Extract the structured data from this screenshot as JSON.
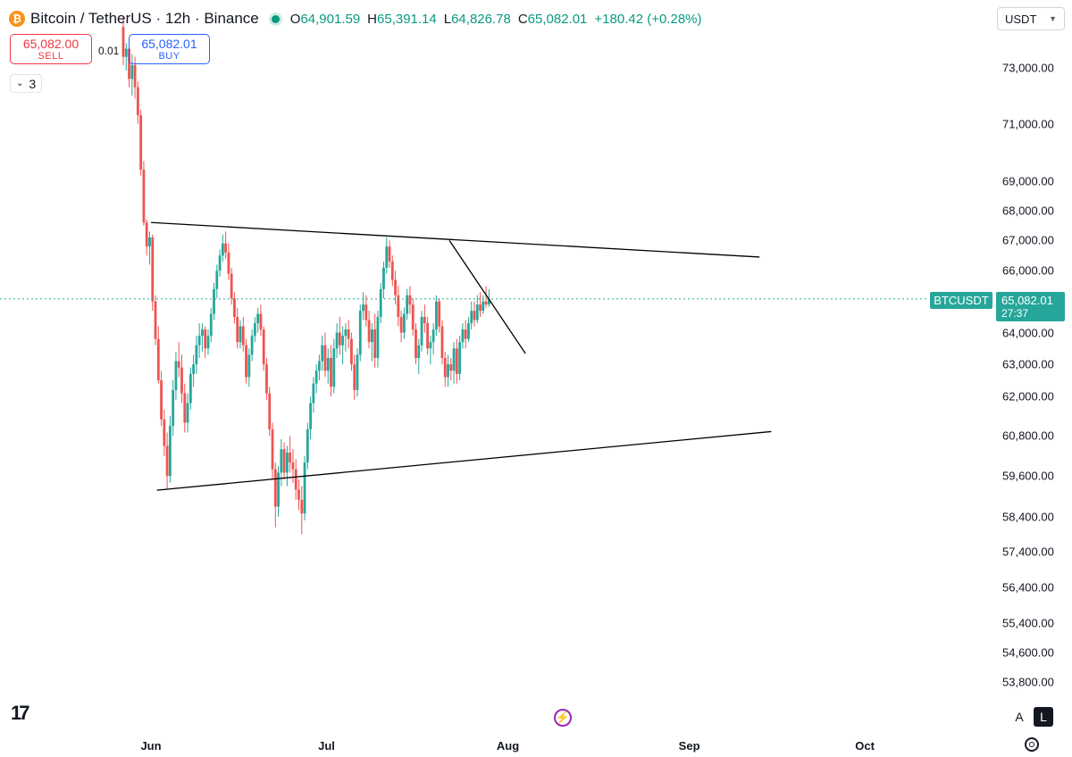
{
  "header": {
    "coin_glyph": "₿",
    "title": "Bitcoin / TetherUS · 12h · Binance",
    "ohlc": [
      {
        "key": "O",
        "value": "64,901.59"
      },
      {
        "key": "H",
        "value": "65,391.14"
      },
      {
        "key": "L",
        "value": "64,826.78"
      },
      {
        "key": "C",
        "value": "65,082.01"
      }
    ],
    "change": "+180.42 (+0.28%)"
  },
  "currency_select": {
    "value": "USDT",
    "icon": "chevron-down-icon"
  },
  "trade": {
    "sell_price": "65,082.00",
    "sell_label": "SELL",
    "spread": "0.01",
    "buy_price": "65,082.01",
    "buy_label": "BUY"
  },
  "indicators": {
    "count": "3",
    "icon": "chevron-down-icon"
  },
  "price_tag": {
    "symbol": "BTCUSDT",
    "price": "65,082.01",
    "countdown": "27:37"
  },
  "bottom": {
    "logo": "17",
    "auto_label": "A",
    "log_label": "L"
  },
  "colors": {
    "up": "#26a69a",
    "down": "#ef5350",
    "accent": "#26a69a",
    "trendline": "#000000"
  },
  "chart_data": {
    "type": "candlestick",
    "symbol": "BTCUSDT",
    "interval": "12h",
    "y_axis_labels": [
      "73,000.00",
      "71,000.00",
      "69,000.00",
      "68,000.00",
      "67,000.00",
      "66,000.00",
      "64,000.00",
      "63,000.00",
      "62,000.00",
      "60,800.00",
      "59,600.00",
      "58,400.00",
      "57,400.00",
      "56,400.00",
      "55,400.00",
      "54,600.00",
      "53,800.00"
    ],
    "x_axis_labels": [
      "Jun",
      "Jul",
      "Aug",
      "Sep",
      "Oct"
    ],
    "last_price": 65082.01,
    "trendlines": [
      {
        "name": "upper",
        "points": [
          [
            "2024-06-01",
            67600
          ],
          [
            "2024-09-13",
            66450
          ]
        ]
      },
      {
        "name": "lower",
        "points": [
          [
            "2024-06-02",
            59180
          ],
          [
            "2024-09-15",
            60930
          ]
        ]
      },
      {
        "name": "breakout",
        "points": [
          [
            "2024-07-22",
            67000
          ],
          [
            "2024-08-04",
            63340
          ]
        ]
      }
    ],
    "candles": [
      {
        "o": 74500,
        "h": 74900,
        "l": 73100,
        "c": 73400
      },
      {
        "o": 73400,
        "h": 73900,
        "l": 72900,
        "c": 73700
      },
      {
        "o": 73700,
        "h": 73800,
        "l": 72300,
        "c": 72600
      },
      {
        "o": 72600,
        "h": 73500,
        "l": 72000,
        "c": 73100
      },
      {
        "o": 73100,
        "h": 73400,
        "l": 71900,
        "c": 72300
      },
      {
        "o": 72300,
        "h": 72500,
        "l": 71000,
        "c": 71300
      },
      {
        "o": 71300,
        "h": 71500,
        "l": 69200,
        "c": 69400
      },
      {
        "o": 69400,
        "h": 69700,
        "l": 67500,
        "c": 67600
      },
      {
        "o": 67600,
        "h": 67700,
        "l": 66500,
        "c": 66800
      },
      {
        "o": 66800,
        "h": 67300,
        "l": 66200,
        "c": 67100
      },
      {
        "o": 67100,
        "h": 67200,
        "l": 64700,
        "c": 65000
      },
      {
        "o": 65000,
        "h": 65200,
        "l": 63600,
        "c": 63800
      },
      {
        "o": 63800,
        "h": 64200,
        "l": 62400,
        "c": 62500
      },
      {
        "o": 62500,
        "h": 62800,
        "l": 61100,
        "c": 61300
      },
      {
        "o": 61300,
        "h": 61600,
        "l": 60200,
        "c": 60500
      },
      {
        "o": 60500,
        "h": 60900,
        "l": 59200,
        "c": 59600
      },
      {
        "o": 59600,
        "h": 61400,
        "l": 59400,
        "c": 61100
      },
      {
        "o": 61100,
        "h": 62500,
        "l": 60800,
        "c": 62200
      },
      {
        "o": 62200,
        "h": 63400,
        "l": 61900,
        "c": 63100
      },
      {
        "o": 63100,
        "h": 63700,
        "l": 62600,
        "c": 62900
      },
      {
        "o": 62900,
        "h": 63300,
        "l": 61800,
        "c": 62100
      },
      {
        "o": 62100,
        "h": 62400,
        "l": 60900,
        "c": 61200
      },
      {
        "o": 61200,
        "h": 62100,
        "l": 60900,
        "c": 61800
      },
      {
        "o": 61800,
        "h": 62900,
        "l": 61600,
        "c": 62700
      },
      {
        "o": 62700,
        "h": 63300,
        "l": 62300,
        "c": 63000
      },
      {
        "o": 63000,
        "h": 63900,
        "l": 62700,
        "c": 63600
      },
      {
        "o": 63600,
        "h": 64300,
        "l": 63200,
        "c": 63900
      },
      {
        "o": 63900,
        "h": 64300,
        "l": 63400,
        "c": 64100
      },
      {
        "o": 64100,
        "h": 64200,
        "l": 63200,
        "c": 63500
      },
      {
        "o": 63500,
        "h": 64100,
        "l": 63300,
        "c": 63900
      },
      {
        "o": 63900,
        "h": 64800,
        "l": 63700,
        "c": 64600
      },
      {
        "o": 64600,
        "h": 65600,
        "l": 64400,
        "c": 65400
      },
      {
        "o": 65400,
        "h": 66200,
        "l": 65100,
        "c": 66000
      },
      {
        "o": 66000,
        "h": 66700,
        "l": 65800,
        "c": 66500
      },
      {
        "o": 66500,
        "h": 67200,
        "l": 66300,
        "c": 66900
      },
      {
        "o": 66900,
        "h": 67300,
        "l": 66400,
        "c": 66600
      },
      {
        "o": 66600,
        "h": 66900,
        "l": 65700,
        "c": 65900
      },
      {
        "o": 65900,
        "h": 66100,
        "l": 64900,
        "c": 65100
      },
      {
        "o": 65100,
        "h": 65300,
        "l": 64300,
        "c": 64500
      },
      {
        "o": 64500,
        "h": 64800,
        "l": 63500,
        "c": 63700
      },
      {
        "o": 63700,
        "h": 64400,
        "l": 63500,
        "c": 64200
      },
      {
        "o": 64200,
        "h": 64500,
        "l": 63400,
        "c": 63600
      },
      {
        "o": 63600,
        "h": 63800,
        "l": 62400,
        "c": 62600
      },
      {
        "o": 62600,
        "h": 63500,
        "l": 62300,
        "c": 63300
      },
      {
        "o": 63300,
        "h": 64100,
        "l": 63100,
        "c": 63900
      },
      {
        "o": 63900,
        "h": 64500,
        "l": 63700,
        "c": 64300
      },
      {
        "o": 64300,
        "h": 64800,
        "l": 64000,
        "c": 64600
      },
      {
        "o": 64600,
        "h": 64900,
        "l": 63900,
        "c": 64100
      },
      {
        "o": 64100,
        "h": 64200,
        "l": 62800,
        "c": 63000
      },
      {
        "o": 63000,
        "h": 63200,
        "l": 61900,
        "c": 62100
      },
      {
        "o": 62100,
        "h": 62300,
        "l": 60800,
        "c": 61000
      },
      {
        "o": 61000,
        "h": 61200,
        "l": 59500,
        "c": 59800
      },
      {
        "o": 59800,
        "h": 60000,
        "l": 58100,
        "c": 58700
      },
      {
        "o": 58700,
        "h": 59900,
        "l": 58400,
        "c": 59700
      },
      {
        "o": 59700,
        "h": 60700,
        "l": 59300,
        "c": 60400
      },
      {
        "o": 60400,
        "h": 60600,
        "l": 59500,
        "c": 59700
      },
      {
        "o": 59700,
        "h": 60500,
        "l": 59300,
        "c": 60300
      },
      {
        "o": 60300,
        "h": 60800,
        "l": 59700,
        "c": 60000
      },
      {
        "o": 60000,
        "h": 60400,
        "l": 59400,
        "c": 59800
      },
      {
        "o": 59800,
        "h": 60100,
        "l": 58900,
        "c": 59200
      },
      {
        "o": 59200,
        "h": 59500,
        "l": 58600,
        "c": 58900
      },
      {
        "o": 58900,
        "h": 59300,
        "l": 57900,
        "c": 58500
      },
      {
        "o": 58500,
        "h": 60200,
        "l": 58300,
        "c": 60000
      },
      {
        "o": 60000,
        "h": 61200,
        "l": 59800,
        "c": 61000
      },
      {
        "o": 61000,
        "h": 62000,
        "l": 60700,
        "c": 61800
      },
      {
        "o": 61800,
        "h": 62600,
        "l": 61500,
        "c": 62400
      },
      {
        "o": 62400,
        "h": 63000,
        "l": 62100,
        "c": 62800
      },
      {
        "o": 62800,
        "h": 63300,
        "l": 62500,
        "c": 63100
      },
      {
        "o": 63100,
        "h": 63900,
        "l": 62800,
        "c": 63600
      },
      {
        "o": 63600,
        "h": 64000,
        "l": 62600,
        "c": 62800
      },
      {
        "o": 62800,
        "h": 63500,
        "l": 62400,
        "c": 63200
      },
      {
        "o": 63200,
        "h": 63600,
        "l": 62000,
        "c": 62300
      },
      {
        "o": 62300,
        "h": 63800,
        "l": 62100,
        "c": 63500
      },
      {
        "o": 63500,
        "h": 64300,
        "l": 63200,
        "c": 64000
      },
      {
        "o": 64000,
        "h": 64500,
        "l": 63300,
        "c": 63600
      },
      {
        "o": 63600,
        "h": 64200,
        "l": 63000,
        "c": 63900
      },
      {
        "o": 63900,
        "h": 64300,
        "l": 63400,
        "c": 64100
      },
      {
        "o": 64100,
        "h": 64400,
        "l": 63500,
        "c": 63800
      },
      {
        "o": 63800,
        "h": 64000,
        "l": 62800,
        "c": 63000
      },
      {
        "o": 63000,
        "h": 63300,
        "l": 61900,
        "c": 62200
      },
      {
        "o": 62200,
        "h": 63500,
        "l": 62000,
        "c": 63300
      },
      {
        "o": 63300,
        "h": 64900,
        "l": 63100,
        "c": 64700
      },
      {
        "o": 64700,
        "h": 65300,
        "l": 64400,
        "c": 64900
      },
      {
        "o": 64900,
        "h": 65200,
        "l": 64200,
        "c": 64400
      },
      {
        "o": 64400,
        "h": 64700,
        "l": 63500,
        "c": 63700
      },
      {
        "o": 63700,
        "h": 64300,
        "l": 63100,
        "c": 64100
      },
      {
        "o": 64100,
        "h": 64600,
        "l": 62900,
        "c": 63200
      },
      {
        "o": 63200,
        "h": 64700,
        "l": 62900,
        "c": 64500
      },
      {
        "o": 64500,
        "h": 65600,
        "l": 64300,
        "c": 65400
      },
      {
        "o": 65400,
        "h": 66300,
        "l": 65100,
        "c": 66100
      },
      {
        "o": 66100,
        "h": 67100,
        "l": 65900,
        "c": 66800
      },
      {
        "o": 66800,
        "h": 67000,
        "l": 66100,
        "c": 66300
      },
      {
        "o": 66300,
        "h": 66500,
        "l": 65500,
        "c": 65700
      },
      {
        "o": 65700,
        "h": 66000,
        "l": 64900,
        "c": 65200
      },
      {
        "o": 65200,
        "h": 65500,
        "l": 64200,
        "c": 64500
      },
      {
        "o": 64500,
        "h": 64700,
        "l": 63700,
        "c": 64000
      },
      {
        "o": 64000,
        "h": 64800,
        "l": 63800,
        "c": 64600
      },
      {
        "o": 64600,
        "h": 65400,
        "l": 64400,
        "c": 65200
      },
      {
        "o": 65200,
        "h": 65500,
        "l": 64600,
        "c": 64900
      },
      {
        "o": 64900,
        "h": 65100,
        "l": 63900,
        "c": 64100
      },
      {
        "o": 64100,
        "h": 64300,
        "l": 63000,
        "c": 63200
      },
      {
        "o": 63200,
        "h": 63800,
        "l": 62700,
        "c": 63600
      },
      {
        "o": 63600,
        "h": 64700,
        "l": 63400,
        "c": 64500
      },
      {
        "o": 64500,
        "h": 64900,
        "l": 64000,
        "c": 64300
      },
      {
        "o": 64300,
        "h": 64500,
        "l": 63300,
        "c": 63500
      },
      {
        "o": 63500,
        "h": 63900,
        "l": 63000,
        "c": 63700
      },
      {
        "o": 63700,
        "h": 64300,
        "l": 63300,
        "c": 64100
      },
      {
        "o": 64100,
        "h": 65200,
        "l": 63900,
        "c": 65000
      },
      {
        "o": 65000,
        "h": 65100,
        "l": 64000,
        "c": 64200
      },
      {
        "o": 64200,
        "h": 64400,
        "l": 63000,
        "c": 63200
      },
      {
        "o": 63200,
        "h": 63400,
        "l": 62300,
        "c": 62600
      },
      {
        "o": 62600,
        "h": 63300,
        "l": 62300,
        "c": 63000
      },
      {
        "o": 63000,
        "h": 63200,
        "l": 62500,
        "c": 62800
      },
      {
        "o": 62800,
        "h": 63700,
        "l": 62400,
        "c": 63500
      },
      {
        "o": 63500,
        "h": 63800,
        "l": 62400,
        "c": 62700
      },
      {
        "o": 62700,
        "h": 63900,
        "l": 62500,
        "c": 63700
      },
      {
        "o": 63700,
        "h": 64300,
        "l": 63500,
        "c": 64100
      },
      {
        "o": 64100,
        "h": 64400,
        "l": 63500,
        "c": 63800
      },
      {
        "o": 63800,
        "h": 64500,
        "l": 63700,
        "c": 64300
      },
      {
        "o": 64300,
        "h": 65000,
        "l": 64100,
        "c": 64700
      },
      {
        "o": 64700,
        "h": 65000,
        "l": 64200,
        "c": 64400
      },
      {
        "o": 64400,
        "h": 65200,
        "l": 64300,
        "c": 64900
      },
      {
        "o": 64900,
        "h": 65300,
        "l": 64500,
        "c": 64700
      },
      {
        "o": 64700,
        "h": 65200,
        "l": 64600,
        "c": 65000
      },
      {
        "o": 65000,
        "h": 65500,
        "l": 64800,
        "c": 64900
      },
      {
        "o": 64901.59,
        "h": 65391.14,
        "l": 64826.78,
        "c": 65082.01
      }
    ]
  }
}
